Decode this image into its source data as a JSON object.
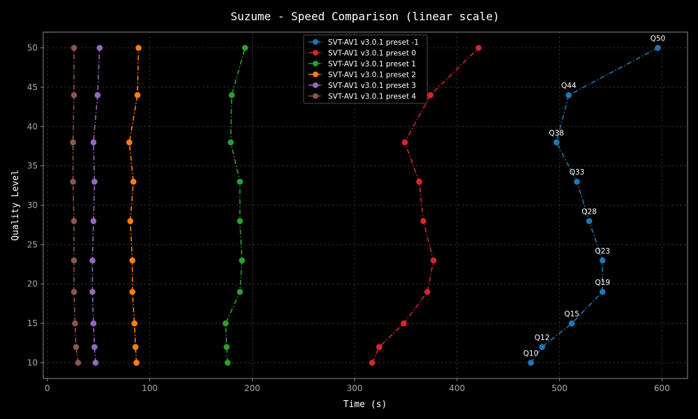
{
  "chart_data": {
    "type": "line",
    "title": "Suzume - Speed Comparison (linear scale)",
    "xlabel": "Time (s)",
    "ylabel": "Quality Level",
    "xlim": [
      -4,
      625
    ],
    "ylim": [
      8,
      52
    ],
    "xticks": [
      0,
      100,
      200,
      300,
      400,
      500,
      600
    ],
    "yticks": [
      10,
      15,
      20,
      25,
      30,
      35,
      40,
      45,
      50
    ],
    "grid": true,
    "legend_position": "top-center",
    "y": [
      10,
      12,
      15,
      19,
      23,
      28,
      33,
      38,
      44,
      50
    ],
    "series": [
      {
        "name": "SVT-AV1 v3.0.1 preset -1",
        "color": "#1f77b4",
        "x": [
          472,
          483,
          512,
          542,
          542,
          529,
          517,
          497,
          509,
          596
        ]
      },
      {
        "name": "SVT-AV1 v3.0.1 preset 0",
        "color": "#d62728",
        "x": [
          317,
          324,
          348,
          371,
          377,
          367,
          363,
          349,
          374,
          421
        ]
      },
      {
        "name": "SVT-AV1 v3.0.1 preset 1",
        "color": "#2ca02c",
        "x": [
          176,
          175,
          174,
          188,
          190,
          188,
          188,
          179,
          180,
          193
        ]
      },
      {
        "name": "SVT-AV1 v3.0.1 preset 2",
        "color": "#ff7f0e",
        "x": [
          87,
          86,
          85,
          83,
          83,
          81,
          84,
          80,
          88,
          89
        ]
      },
      {
        "name": "SVT-AV1 v3.0.1 preset 3",
        "color": "#9467bd",
        "x": [
          47,
          46,
          45,
          44,
          44,
          45,
          46,
          45,
          49,
          51
        ]
      },
      {
        "name": "SVT-AV1 v3.0.1 preset 4",
        "color": "#8c564b",
        "x": [
          30,
          28,
          27,
          26,
          26,
          26,
          25,
          25,
          26,
          26
        ]
      }
    ],
    "annotations": {
      "series_index": 0,
      "labels": [
        "Q10",
        "Q12",
        "Q15",
        "Q19",
        "Q23",
        "Q28",
        "Q33",
        "Q38",
        "Q44",
        "Q50"
      ]
    }
  }
}
